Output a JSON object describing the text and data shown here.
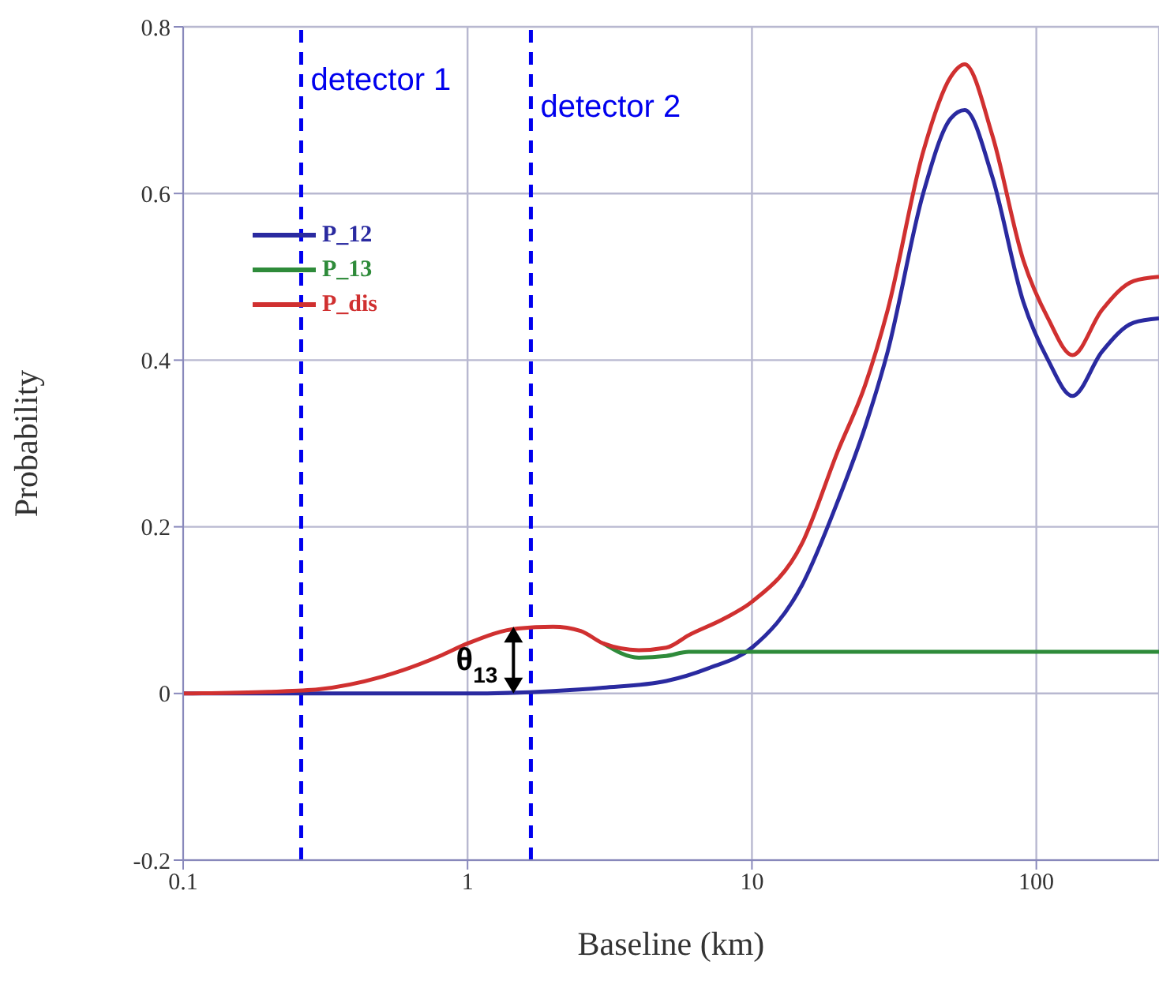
{
  "chart_data": {
    "type": "line",
    "xlabel": "Baseline (km)",
    "ylabel": "Probability",
    "log": "x",
    "xlim": [
      0.1,
      270
    ],
    "xticks": [
      0.1,
      1,
      10,
      100
    ],
    "ylim": [
      -0.2,
      0.8
    ],
    "yticks": [
      -0.2,
      0,
      0.2,
      0.4,
      0.6,
      0.8
    ],
    "grid": true,
    "legend": "top left",
    "marker": "none",
    "line_style": "solid",
    "series": [
      {
        "name": "P_12",
        "color": "#2a2aa0",
        "x": [
          0.1,
          0.5,
          1,
          2,
          3,
          5,
          7,
          10,
          15,
          20,
          25,
          30,
          40,
          50,
          56,
          70,
          90,
          110,
          134,
          170,
          220,
          270
        ],
        "values": [
          0,
          0,
          0,
          0.003,
          0.007,
          0.015,
          0.03,
          0.055,
          0.13,
          0.23,
          0.32,
          0.41,
          0.6,
          0.69,
          0.7,
          0.62,
          0.47,
          0.4,
          0.357,
          0.41,
          0.445,
          0.45
        ]
      },
      {
        "name": "P_13",
        "color": "#2e8b3a",
        "x": [
          3,
          4,
          5,
          6,
          8,
          10,
          20,
          50,
          100,
          270
        ],
        "values": [
          0.06,
          0.043,
          0.045,
          0.05,
          0.05,
          0.05,
          0.05,
          0.05,
          0.05,
          0.05
        ]
      },
      {
        "name": "P_dis",
        "color": "#d03030",
        "x": [
          0.1,
          0.2,
          0.3,
          0.5,
          0.8,
          1,
          1.5,
          2,
          2.5,
          3,
          4,
          5,
          6,
          8,
          10,
          15,
          20,
          25,
          30,
          40,
          50,
          56,
          70,
          90,
          110,
          134,
          170,
          220,
          270
        ],
        "values": [
          0,
          0.002,
          0.005,
          0.02,
          0.045,
          0.06,
          0.078,
          0.08,
          0.075,
          0.06,
          0.052,
          0.055,
          0.07,
          0.09,
          0.11,
          0.18,
          0.29,
          0.37,
          0.46,
          0.65,
          0.74,
          0.755,
          0.67,
          0.52,
          0.45,
          0.406,
          0.46,
          0.495,
          0.5
        ]
      }
    ],
    "ref_lines": [
      {
        "axis": "x",
        "value": 0.26,
        "label": "detector 1",
        "color": "#0000ee",
        "line_style": "dashed"
      },
      {
        "axis": "x",
        "value": 1.67,
        "label": "detector 2",
        "color": "#0000ee",
        "line_style": "dashed"
      }
    ],
    "annotations": [
      {
        "text": "θ$_{13}$",
        "x": 1.45,
        "y": 0.08
      }
    ]
  }
}
